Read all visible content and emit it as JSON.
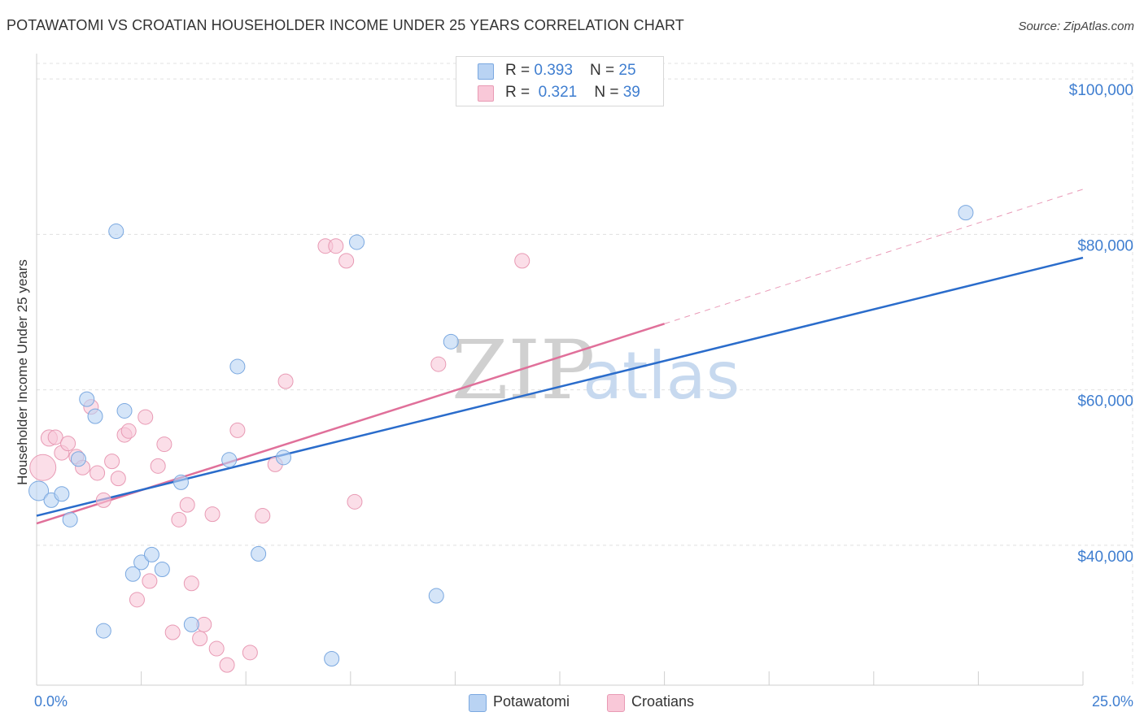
{
  "title": "POTAWATOMI VS CROATIAN HOUSEHOLDER INCOME UNDER 25 YEARS CORRELATION CHART",
  "source": "Source: ZipAtlas.com",
  "watermark": {
    "zip": "ZIP",
    "atlas": "atlas"
  },
  "legend": {
    "rows": [
      {
        "r_label": "R = ",
        "r_value": "0.393",
        "n_label": "N = ",
        "n_value": "25",
        "color": "#b9d3f3",
        "border": "#7aa8e0"
      },
      {
        "r_label": "R = ",
        "r_value": "0.321",
        "n_label": "N = ",
        "n_value": "39",
        "color": "#f9c8d8",
        "border": "#e89ab4"
      }
    ]
  },
  "bottom_legend": [
    {
      "label": "Potawatomi",
      "color": "#b9d3f3",
      "border": "#7aa8e0"
    },
    {
      "label": "Croatians",
      "color": "#f9c8d8",
      "border": "#e89ab4"
    }
  ],
  "colors": {
    "blue_fill": "#b9d3f3",
    "blue_stroke": "#7aa8e0",
    "blue_line": "#2a6ccb",
    "pink_fill": "#f9c8d8",
    "pink_stroke": "#e89ab4",
    "pink_line": "#e0709a",
    "grid": "#e0e0e0",
    "tick_text": "#3f7ed0"
  },
  "chart_data": {
    "type": "scatter",
    "title": "POTAWATOMI VS CROATIAN HOUSEHOLDER INCOME UNDER 25 YEARS CORRELATION CHART",
    "xlabel": "",
    "ylabel": "Householder Income Under 25 years",
    "xlim": [
      0,
      25
    ],
    "ylim": [
      22000,
      102000
    ],
    "x_tick_labels": [
      "0.0%",
      "25.0%"
    ],
    "y_ticks": [
      40000,
      60000,
      80000,
      100000
    ],
    "y_tick_labels": [
      "$40,000",
      "$60,000",
      "$80,000",
      "$100,000"
    ],
    "grid": true,
    "legend_position": "top-center",
    "series": [
      {
        "name": "Potawatomi",
        "points": [
          {
            "x": 0.05,
            "y": 47000,
            "s": 12
          },
          {
            "x": 0.35,
            "y": 45800,
            "s": 9
          },
          {
            "x": 0.6,
            "y": 46600,
            "s": 9
          },
          {
            "x": 0.8,
            "y": 43300,
            "s": 9
          },
          {
            "x": 1.2,
            "y": 58800,
            "s": 9
          },
          {
            "x": 1.0,
            "y": 51100,
            "s": 9
          },
          {
            "x": 1.4,
            "y": 56600,
            "s": 9
          },
          {
            "x": 1.6,
            "y": 29000,
            "s": 9
          },
          {
            "x": 1.9,
            "y": 80400,
            "s": 9
          },
          {
            "x": 2.1,
            "y": 57300,
            "s": 9
          },
          {
            "x": 2.3,
            "y": 36300,
            "s": 9
          },
          {
            "x": 2.5,
            "y": 37800,
            "s": 9
          },
          {
            "x": 2.75,
            "y": 38800,
            "s": 9
          },
          {
            "x": 3.0,
            "y": 36900,
            "s": 9
          },
          {
            "x": 3.45,
            "y": 48100,
            "s": 9
          },
          {
            "x": 3.7,
            "y": 29800,
            "s": 9
          },
          {
            "x": 4.6,
            "y": 51000,
            "s": 9
          },
          {
            "x": 4.8,
            "y": 63000,
            "s": 9
          },
          {
            "x": 5.3,
            "y": 38900,
            "s": 9
          },
          {
            "x": 5.9,
            "y": 51300,
            "s": 9
          },
          {
            "x": 7.05,
            "y": 25400,
            "s": 9
          },
          {
            "x": 7.65,
            "y": 79000,
            "s": 9
          },
          {
            "x": 9.55,
            "y": 33500,
            "s": 9
          },
          {
            "x": 9.9,
            "y": 66200,
            "s": 9
          },
          {
            "x": 22.2,
            "y": 82800,
            "s": 9
          }
        ],
        "trend": {
          "x": [
            0,
            25
          ],
          "y": [
            43800,
            77000
          ]
        }
      },
      {
        "name": "Croatians",
        "points": [
          {
            "x": 0.15,
            "y": 50000,
            "s": 16
          },
          {
            "x": 0.3,
            "y": 53800,
            "s": 10
          },
          {
            "x": 0.45,
            "y": 53900,
            "s": 9
          },
          {
            "x": 0.6,
            "y": 51900,
            "s": 9
          },
          {
            "x": 0.75,
            "y": 53100,
            "s": 9
          },
          {
            "x": 0.95,
            "y": 51400,
            "s": 9
          },
          {
            "x": 1.1,
            "y": 50000,
            "s": 9
          },
          {
            "x": 1.3,
            "y": 57800,
            "s": 9
          },
          {
            "x": 1.45,
            "y": 49300,
            "s": 9
          },
          {
            "x": 1.6,
            "y": 45800,
            "s": 9
          },
          {
            "x": 1.8,
            "y": 50800,
            "s": 9
          },
          {
            "x": 1.95,
            "y": 48600,
            "s": 9
          },
          {
            "x": 2.1,
            "y": 54200,
            "s": 9
          },
          {
            "x": 2.2,
            "y": 54700,
            "s": 9
          },
          {
            "x": 2.4,
            "y": 33000,
            "s": 9
          },
          {
            "x": 2.6,
            "y": 56500,
            "s": 9
          },
          {
            "x": 2.7,
            "y": 35400,
            "s": 9
          },
          {
            "x": 2.9,
            "y": 50200,
            "s": 9
          },
          {
            "x": 3.05,
            "y": 53000,
            "s": 9
          },
          {
            "x": 3.25,
            "y": 28800,
            "s": 9
          },
          {
            "x": 3.4,
            "y": 43300,
            "s": 9
          },
          {
            "x": 3.6,
            "y": 45200,
            "s": 9
          },
          {
            "x": 3.7,
            "y": 35100,
            "s": 9
          },
          {
            "x": 3.9,
            "y": 28000,
            "s": 9
          },
          {
            "x": 4.0,
            "y": 29800,
            "s": 9
          },
          {
            "x": 4.2,
            "y": 44000,
            "s": 9
          },
          {
            "x": 4.3,
            "y": 26700,
            "s": 9
          },
          {
            "x": 4.55,
            "y": 24600,
            "s": 9
          },
          {
            "x": 4.8,
            "y": 54800,
            "s": 9
          },
          {
            "x": 5.1,
            "y": 26200,
            "s": 9
          },
          {
            "x": 5.4,
            "y": 43800,
            "s": 9
          },
          {
            "x": 5.7,
            "y": 50400,
            "s": 9
          },
          {
            "x": 5.95,
            "y": 61100,
            "s": 9
          },
          {
            "x": 6.9,
            "y": 78500,
            "s": 9
          },
          {
            "x": 7.15,
            "y": 78500,
            "s": 9
          },
          {
            "x": 7.4,
            "y": 76600,
            "s": 9
          },
          {
            "x": 7.6,
            "y": 45600,
            "s": 9
          },
          {
            "x": 9.6,
            "y": 63300,
            "s": 9
          },
          {
            "x": 11.6,
            "y": 76600,
            "s": 9
          }
        ],
        "trend": {
          "x": [
            0,
            15
          ],
          "y": [
            42800,
            68500
          ]
        },
        "trend_extension": {
          "x": [
            15,
            25
          ],
          "y": [
            68500,
            85800
          ]
        }
      }
    ]
  }
}
